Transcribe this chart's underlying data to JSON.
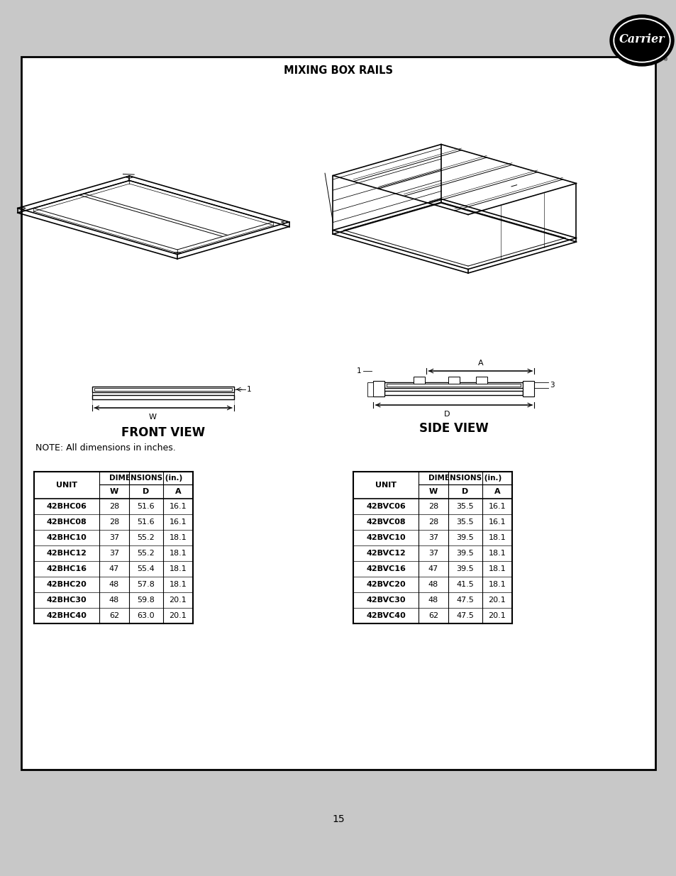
{
  "title": "MIXING BOX RAILS",
  "page_number": "15",
  "note": "NOTE: All dimensions in inches.",
  "front_view_label": "FRONT VIEW",
  "side_view_label": "SIDE VIEW",
  "table1_title": "DIMENSIONS (in.)",
  "table1_unit_header": "UNIT",
  "table1_cols": [
    "W",
    "D",
    "A"
  ],
  "table1_rows": [
    [
      "42BHC06",
      "28",
      "51.6",
      "16.1"
    ],
    [
      "42BHC08",
      "28",
      "51.6",
      "16.1"
    ],
    [
      "42BHC10",
      "37",
      "55.2",
      "18.1"
    ],
    [
      "42BHC12",
      "37",
      "55.2",
      "18.1"
    ],
    [
      "42BHC16",
      "47",
      "55.4",
      "18.1"
    ],
    [
      "42BHC20",
      "48",
      "57.8",
      "18.1"
    ],
    [
      "42BHC30",
      "48",
      "59.8",
      "20.1"
    ],
    [
      "42BHC40",
      "62",
      "63.0",
      "20.1"
    ]
  ],
  "table2_title": "DIMENSIONS (in.)",
  "table2_unit_header": "UNIT",
  "table2_cols": [
    "W",
    "D",
    "A"
  ],
  "table2_rows": [
    [
      "42BVC06",
      "28",
      "35.5",
      "16.1"
    ],
    [
      "42BVC08",
      "28",
      "35.5",
      "16.1"
    ],
    [
      "42BVC10",
      "37",
      "39.5",
      "18.1"
    ],
    [
      "42BVC12",
      "37",
      "39.5",
      "18.1"
    ],
    [
      "42BVC16",
      "47",
      "39.5",
      "18.1"
    ],
    [
      "42BVC20",
      "48",
      "41.5",
      "18.1"
    ],
    [
      "42BVC30",
      "48",
      "47.5",
      "20.1"
    ],
    [
      "42BVC40",
      "62",
      "47.5",
      "20.1"
    ]
  ],
  "page_bg": "#c8c8c8",
  "content_bg": "#ffffff",
  "border_color": "#000000"
}
